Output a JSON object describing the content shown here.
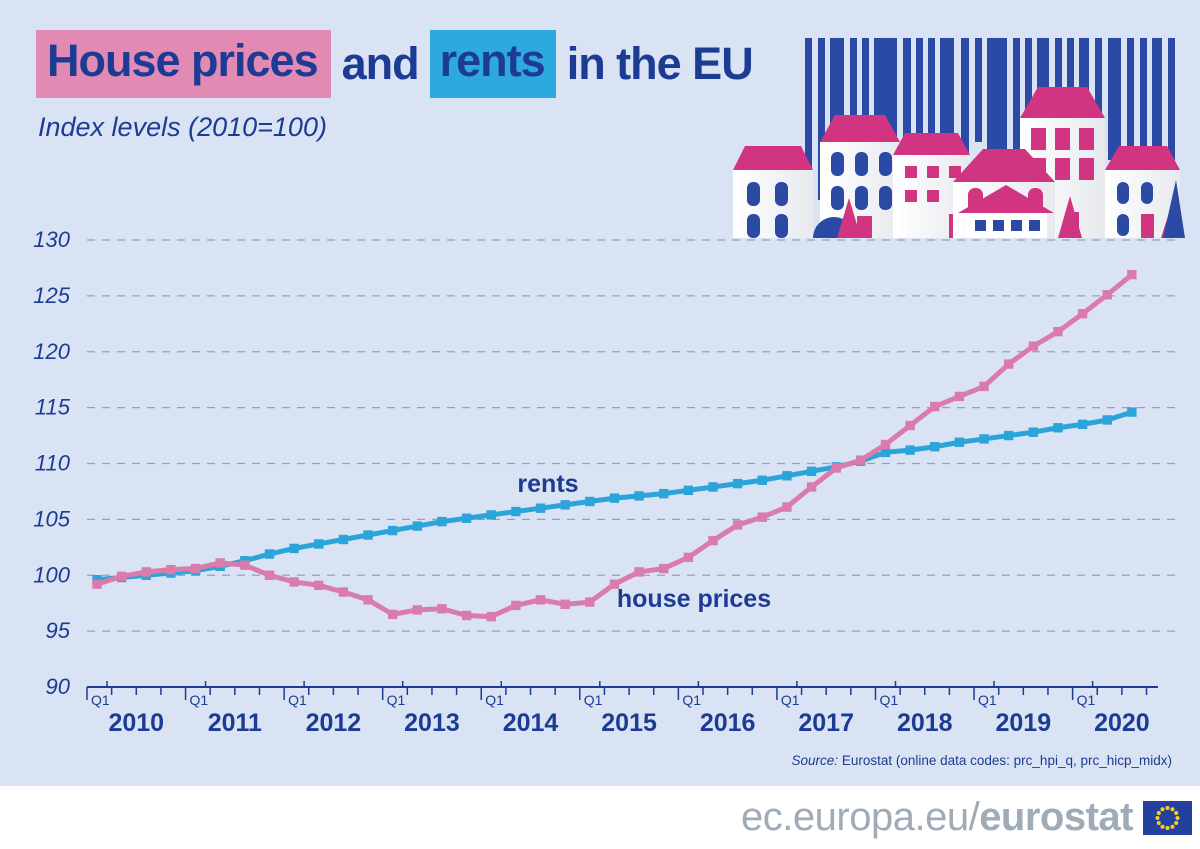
{
  "header": {
    "title": {
      "part1": "House prices",
      "part2": "and",
      "part3": "rents",
      "part4": "in the EU"
    },
    "subtitle": "Index levels (2010=100)"
  },
  "chart_data": {
    "type": "line",
    "title": "House prices and rents in the EU",
    "subtitle": "Index levels (2010=100)",
    "frequency": "quarterly",
    "x_start": "2010-Q1",
    "x_end": "2020-Q3",
    "years": [
      "2010",
      "2011",
      "2012",
      "2013",
      "2014",
      "2015",
      "2016",
      "2017",
      "2018",
      "2019",
      "2020"
    ],
    "quarter_tick_label": "Q1",
    "ylim": [
      90,
      130
    ],
    "yticks": [
      90,
      95,
      100,
      105,
      110,
      115,
      120,
      125,
      130
    ],
    "grid": "horizontal dashed",
    "legend": "inline labels near lines",
    "series": [
      {
        "name": "rents",
        "color": "#2ba4da",
        "values": [
          99.6,
          99.8,
          100.0,
          100.2,
          100.4,
          100.8,
          101.3,
          101.9,
          102.4,
          102.8,
          103.2,
          103.6,
          104.0,
          104.4,
          104.8,
          105.1,
          105.4,
          105.7,
          106.0,
          106.3,
          106.6,
          106.9,
          107.1,
          107.3,
          107.6,
          107.9,
          108.2,
          108.5,
          108.9,
          109.3,
          109.7,
          110.2,
          111.0,
          111.2,
          111.5,
          111.9,
          112.2,
          112.5,
          112.8,
          113.2,
          113.5,
          113.9,
          114.6
        ]
      },
      {
        "name": "house prices",
        "color": "#d97cab",
        "values": [
          99.2,
          99.9,
          100.3,
          100.5,
          100.6,
          101.1,
          100.9,
          100.0,
          99.4,
          99.1,
          98.5,
          97.8,
          96.5,
          96.9,
          97.0,
          96.4,
          96.3,
          97.3,
          97.8,
          97.4,
          97.6,
          99.2,
          100.3,
          100.6,
          101.6,
          103.1,
          104.5,
          105.2,
          106.1,
          107.9,
          109.6,
          110.3,
          111.7,
          113.4,
          115.1,
          116.0,
          116.9,
          118.9,
          120.5,
          121.8,
          123.4,
          125.1,
          126.9
        ]
      }
    ]
  },
  "source": {
    "prefix": "Source:",
    "text": " Eurostat (online data codes: prc_hpi_q, prc_hicp_midx)"
  },
  "footer": {
    "url_plain": "ec.europa.eu/",
    "url_bold": "eurostat"
  },
  "colors": {
    "background": "#dae3f3",
    "dark_blue": "#1c3c94",
    "pink_highlight": "#e28ab4",
    "blue_highlight": "#2ea9e0",
    "line_pink": "#d97cab",
    "line_blue": "#2ba4da",
    "grid": "#8ea2c8",
    "barcode_blue": "#2b4aa6",
    "roof_pink": "#d13480",
    "footer_text": "#9fabb6",
    "flag_blue": "#24409e",
    "star_yellow": "#f7d117"
  }
}
